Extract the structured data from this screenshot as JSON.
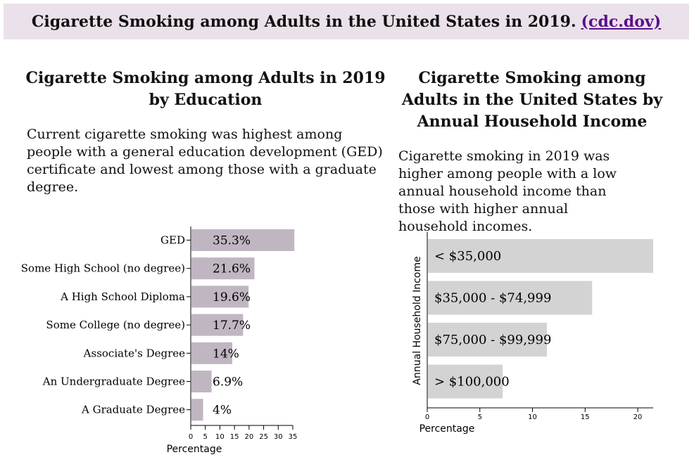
{
  "header": {
    "title": "Cigarette Smoking among Adults in the United States in 2019.",
    "link_text": "(cdc.dov)"
  },
  "left": {
    "title": "Cigarette Smoking among Adults in 2019 by Education",
    "description": "Current cigarette smoking was highest among people with a general education development (GED) certificate and lowest among those with a graduate degree."
  },
  "right": {
    "title": "Cigarette Smoking among Adults in the United States by Annual Household Income",
    "description": "Cigarette smoking in 2019 was higher among people with a low annual household income than those with higher annual household incomes."
  },
  "colors": {
    "education_bar": "#c0b6c2",
    "income_bar": "#d3d3d3",
    "banner_bg": "#ebe1ea",
    "link": "#5a0f8c"
  },
  "chart_data": [
    {
      "type": "bar",
      "orientation": "horizontal",
      "categories": [
        "GED",
        "Some High School (no degree)",
        "A High School Diploma",
        "Some College (no degree)",
        "Associate's Degree",
        "An Undergraduate Degree",
        "A Graduate Degree"
      ],
      "values": [
        35.3,
        21.6,
        19.6,
        17.7,
        14,
        6.9,
        4
      ],
      "data_labels": [
        "35.3%",
        "21.6%",
        "19.6%",
        "17.7%",
        "14%",
        "6.9%",
        "4%"
      ],
      "xlabel": "Percentage",
      "ylabel": "",
      "xlim": [
        0,
        35
      ],
      "xticks": [
        "0",
        "5",
        "10",
        "15",
        "20",
        "25",
        "30",
        "35"
      ],
      "grid": false
    },
    {
      "type": "bar",
      "orientation": "horizontal",
      "categories": [
        "< $35,000",
        "$35,000 - $74,999",
        "$75,000 - $99,999",
        "> $100,000"
      ],
      "values": [
        21.4,
        15.6,
        11.3,
        7.1
      ],
      "xlabel": "Percentage",
      "ylabel": "Annual Household Income",
      "xlim": [
        0,
        21.4
      ],
      "xticks": [
        "0",
        "5",
        "10",
        "15",
        "20"
      ],
      "grid": false
    }
  ]
}
